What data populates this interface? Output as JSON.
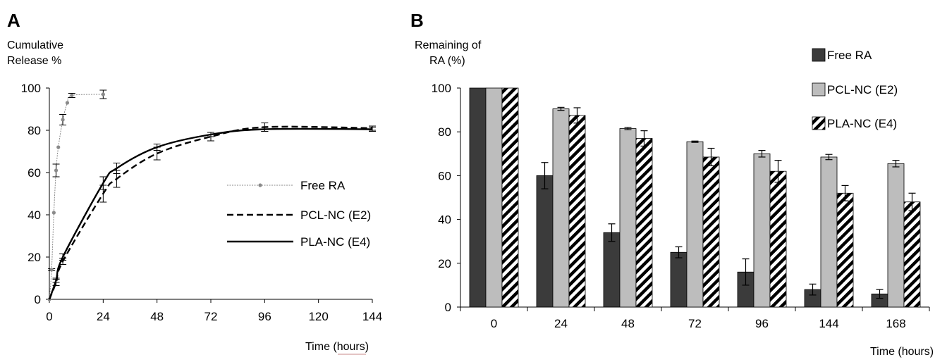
{
  "chart_data": [
    {
      "panel": "A",
      "type": "line",
      "ylabel": [
        "Cumulative",
        "Release %"
      ],
      "xlabel": "Time (hours)",
      "xlim": [
        0,
        144
      ],
      "ylim": [
        0,
        100
      ],
      "xticks": [
        0,
        24,
        48,
        72,
        96,
        120,
        144
      ],
      "yticks": [
        0,
        20,
        40,
        60,
        80,
        100
      ],
      "legend_position": "right",
      "series": [
        {
          "name": "Free RA",
          "style": "dotted-markers",
          "color": "#8a8a8a",
          "x": [
            0,
            1,
            2,
            3,
            4,
            6,
            8,
            10,
            24
          ],
          "y": [
            0,
            14,
            41,
            61,
            72,
            85,
            93,
            96.5,
            97
          ],
          "errors": [
            0,
            0.5,
            0,
            3,
            0,
            2.5,
            0,
            1,
            2
          ]
        },
        {
          "name": "PCL-NC (E2)",
          "style": "dashed",
          "color": "#000000",
          "x": [
            0,
            3,
            6,
            24,
            30,
            48,
            72,
            96,
            144
          ],
          "y": [
            0,
            8,
            18,
            50,
            57,
            69,
            77,
            81.5,
            81
          ],
          "errors": [
            0,
            1.5,
            1.5,
            4,
            4,
            3,
            2,
            2,
            1
          ]
        },
        {
          "name": "PLA-NC (E4)",
          "style": "solid",
          "color": "#000000",
          "x": [
            0,
            3,
            6,
            24,
            30,
            48,
            72,
            96,
            144
          ],
          "y": [
            0,
            9,
            20,
            55,
            62,
            72,
            78,
            80.5,
            80.5
          ],
          "errors": [
            0,
            1,
            1.5,
            3,
            2.5,
            1.5,
            1,
            1,
            1
          ]
        }
      ]
    },
    {
      "panel": "B",
      "type": "bar",
      "ylabel": [
        "Remaining of",
        "RA (%)"
      ],
      "xlabel": "Time (hours)",
      "categories": [
        "0",
        "24",
        "48",
        "72",
        "96",
        "144",
        "168"
      ],
      "ylim": [
        0,
        100
      ],
      "yticks": [
        0,
        20,
        40,
        60,
        80,
        100
      ],
      "legend_position": "top-right",
      "series": [
        {
          "name": "Free RA",
          "fill": "#3b3b3b",
          "values": [
            100,
            60,
            34,
            25,
            16,
            8,
            6
          ],
          "errors": [
            0,
            6,
            4,
            2.5,
            6,
            2.5,
            2
          ]
        },
        {
          "name": "PCL-NC (E2)",
          "fill": "#bdbdbd",
          "values": [
            100,
            90.5,
            81.5,
            75.5,
            70,
            68.5,
            65.5
          ],
          "errors": [
            0,
            0.7,
            0.5,
            0.3,
            1.5,
            1.2,
            1.5
          ]
        },
        {
          "name": "PLA-NC (E4)",
          "fill": "hatch",
          "values": [
            100,
            87.5,
            77,
            68.5,
            62,
            52,
            48
          ],
          "errors": [
            0,
            3.5,
            3.5,
            4,
            5,
            3.5,
            4
          ]
        }
      ]
    }
  ]
}
